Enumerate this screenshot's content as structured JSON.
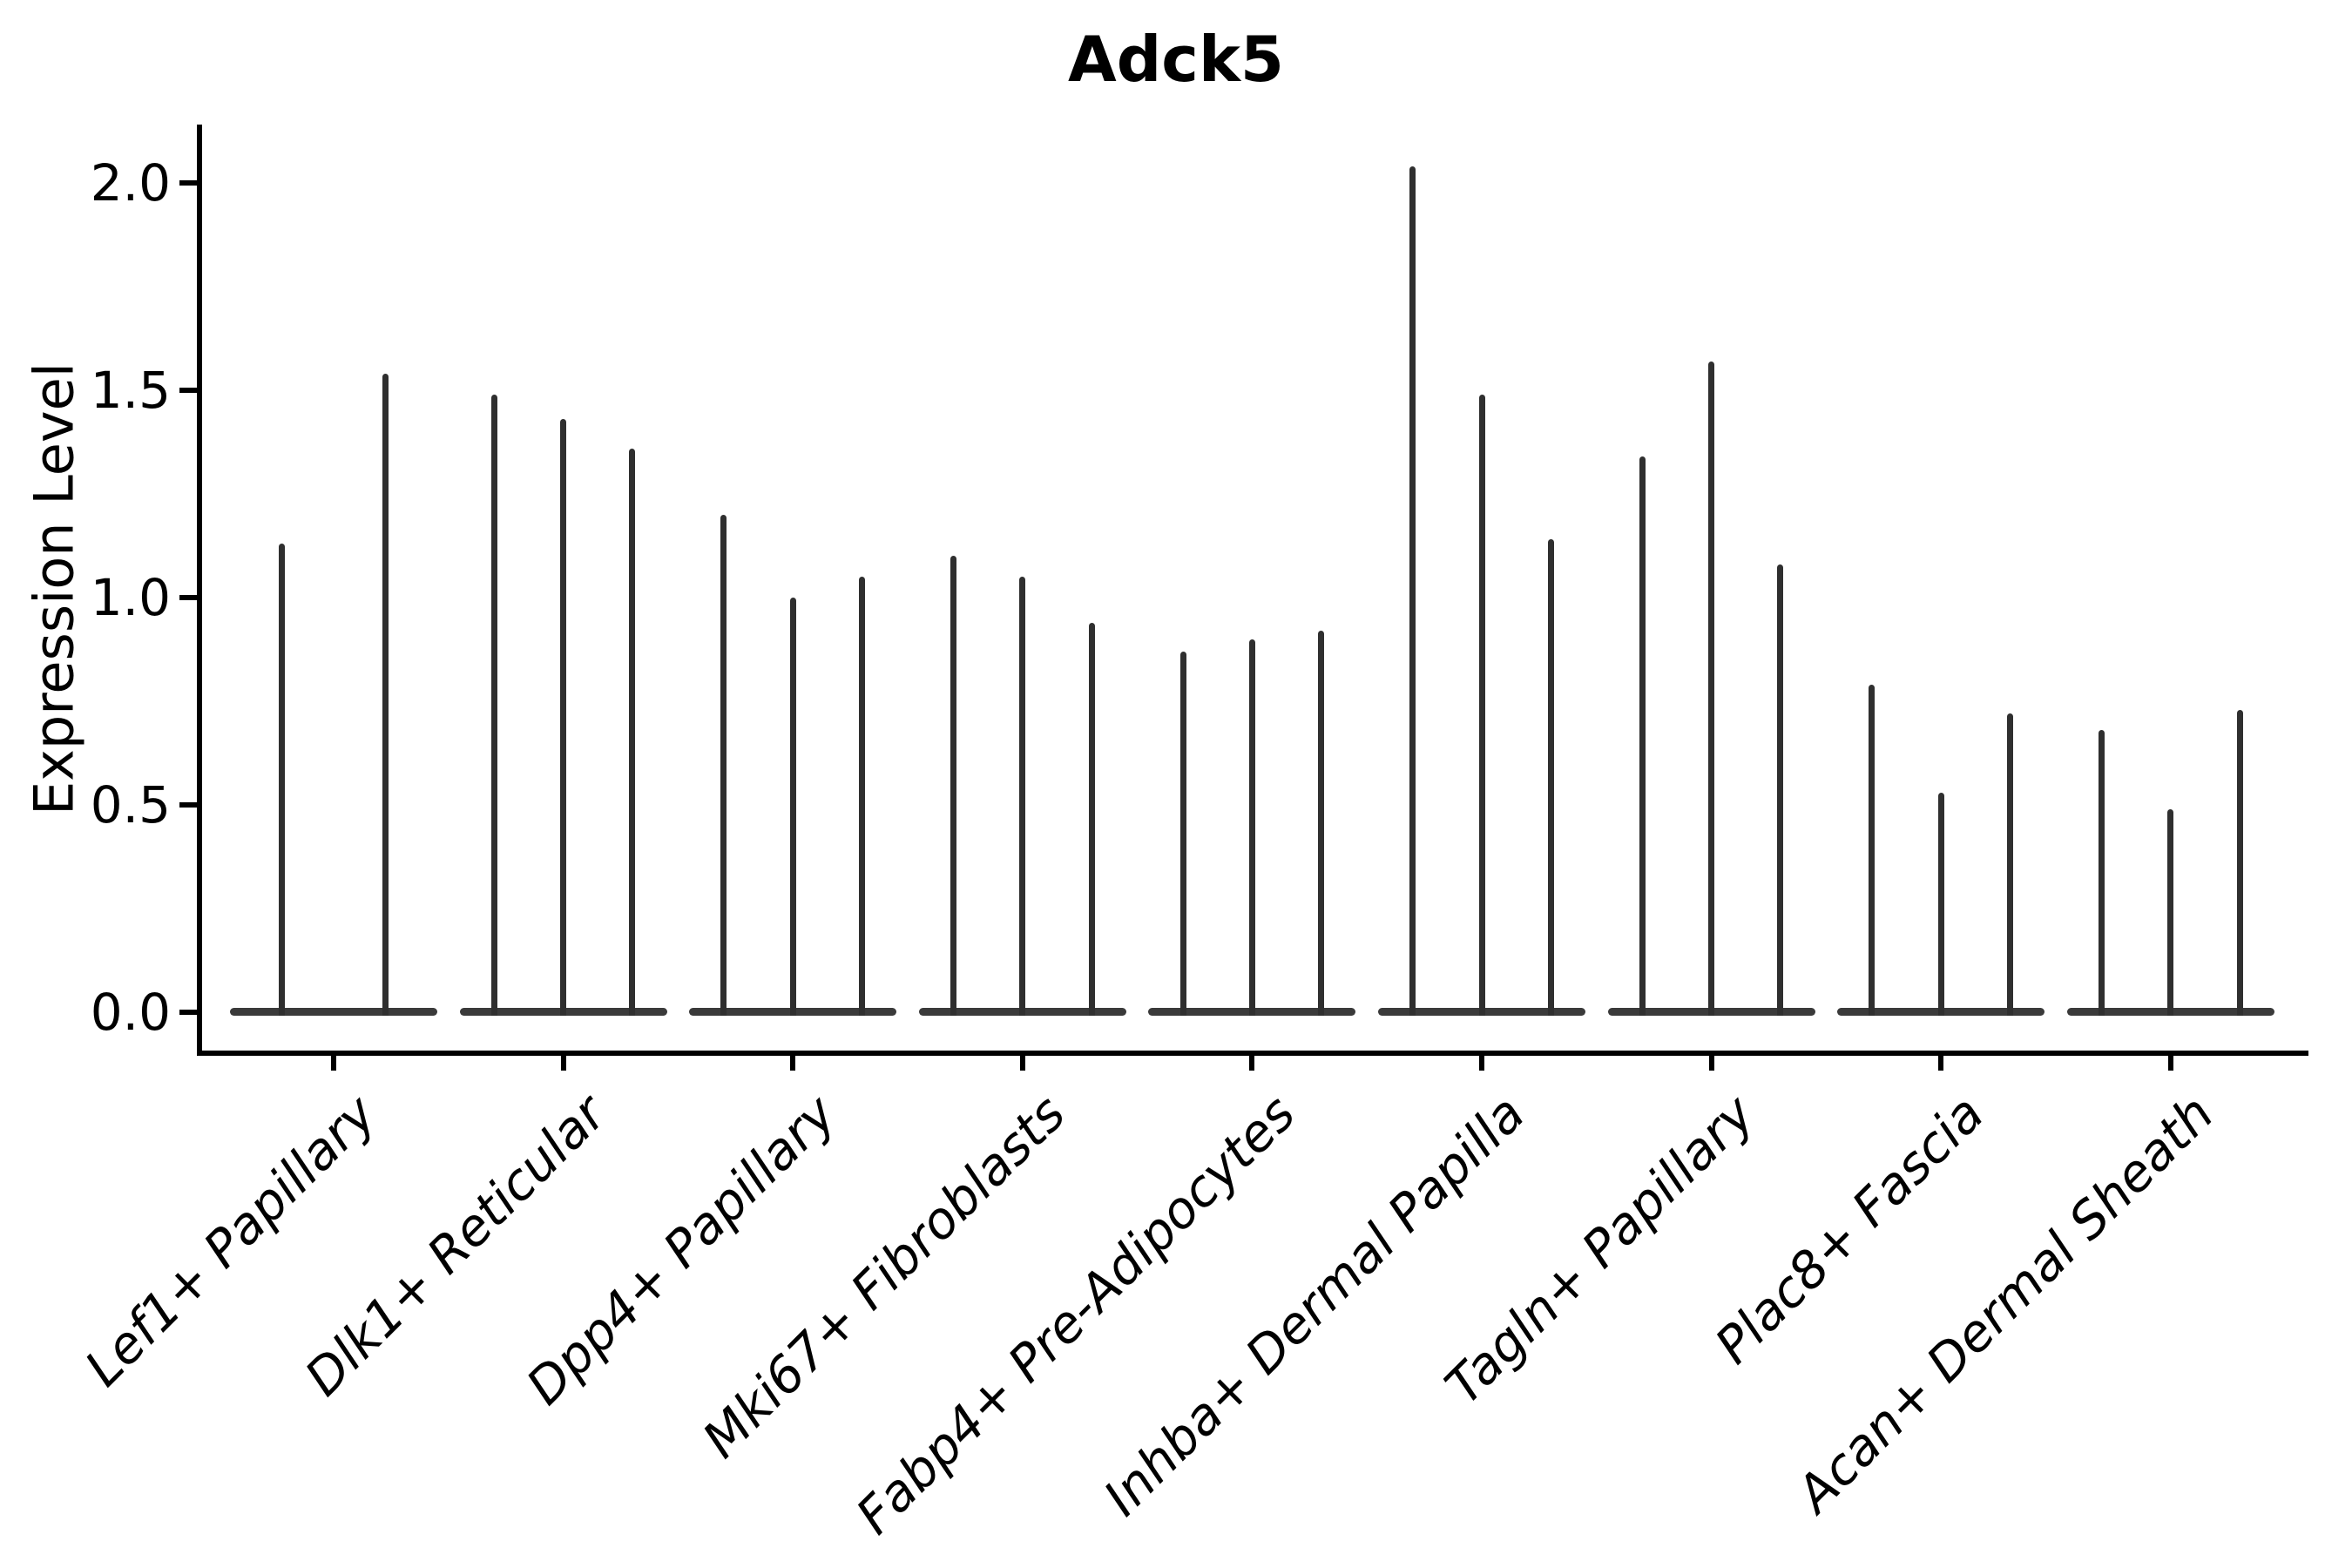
{
  "chart_data": {
    "type": "violin",
    "title": "Adck5",
    "xlabel": "",
    "ylabel": "Expression Level",
    "ylim": [
      -0.1,
      2.14
    ],
    "yticks": [
      2.0,
      1.5,
      1.0,
      0.5,
      0.0
    ],
    "ytick_labels": [
      "2.0",
      "1.5",
      "1.0",
      "0.5",
      "0.0"
    ],
    "grid": false,
    "legend": "none",
    "axis_color": "#000000",
    "violin_color": "#2f2f2f",
    "description": "Stacked single-cell expression violin plot; each cell-type group contains thin degenerate violins (mass at 0 with a narrow tail up to the maximum expression value).",
    "categories": [
      {
        "label": "Lef1+ Papillary",
        "violin_maxima": [
          1.13,
          1.54
        ]
      },
      {
        "label": "Dlk1+ Reticular",
        "violin_maxima": [
          1.49,
          1.43,
          1.36
        ]
      },
      {
        "label": "Dpp4+ Papillary",
        "violin_maxima": [
          1.2,
          1.0,
          1.05
        ]
      },
      {
        "label": "Mki67+ Fibroblasts",
        "violin_maxima": [
          1.1,
          1.05,
          0.94
        ]
      },
      {
        "label": "Fabp4+ Pre-Adipocytes",
        "violin_maxima": [
          0.87,
          0.9,
          0.92
        ]
      },
      {
        "label": "Inhba+ Dermal Papilla",
        "violin_maxima": [
          2.04,
          1.49,
          1.14
        ]
      },
      {
        "label": "Tagln+ Papillary",
        "violin_maxima": [
          1.34,
          1.57,
          1.08
        ]
      },
      {
        "label": "Plac8+ Fascia",
        "violin_maxima": [
          0.79,
          0.53,
          0.72
        ]
      },
      {
        "label": "Acan+ Dermal Sheath",
        "violin_maxima": [
          0.68,
          0.49,
          0.73
        ]
      }
    ]
  }
}
